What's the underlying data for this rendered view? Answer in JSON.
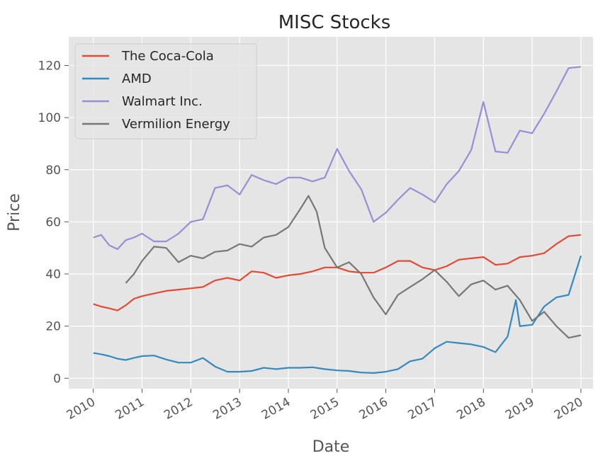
{
  "chart_data": {
    "type": "line",
    "title": "MISC Stocks",
    "xlabel": "Date",
    "ylabel": "Price",
    "x_range": [
      "2009-07-01",
      "2020-04-01"
    ],
    "ylim": [
      -4,
      131
    ],
    "xticks": [
      "2010",
      "2011",
      "2012",
      "2013",
      "2014",
      "2015",
      "2016",
      "2017",
      "2018",
      "2019",
      "2020"
    ],
    "yticks": [
      0,
      20,
      40,
      60,
      80,
      100,
      120
    ],
    "grid": true,
    "legend_position": "top-left",
    "series": [
      {
        "name": "The Coca-Cola",
        "color": "#E24A33",
        "points": [
          [
            "2010-01-01",
            28.5
          ],
          [
            "2010-03-01",
            27.5
          ],
          [
            "2010-05-01",
            26.8
          ],
          [
            "2010-07-01",
            26.0
          ],
          [
            "2010-09-01",
            28.0
          ],
          [
            "2010-11-01",
            30.5
          ],
          [
            "2011-01-01",
            31.5
          ],
          [
            "2011-04-01",
            32.5
          ],
          [
            "2011-07-01",
            33.5
          ],
          [
            "2011-10-01",
            34.0
          ],
          [
            "2012-01-01",
            34.5
          ],
          [
            "2012-04-01",
            35.0
          ],
          [
            "2012-07-01",
            37.5
          ],
          [
            "2012-10-01",
            38.5
          ],
          [
            "2013-01-01",
            37.5
          ],
          [
            "2013-04-01",
            41.0
          ],
          [
            "2013-07-01",
            40.5
          ],
          [
            "2013-10-01",
            38.5
          ],
          [
            "2014-01-01",
            39.5
          ],
          [
            "2014-04-01",
            40.0
          ],
          [
            "2014-07-01",
            41.0
          ],
          [
            "2014-10-01",
            42.5
          ],
          [
            "2015-01-01",
            42.5
          ],
          [
            "2015-04-01",
            41.0
          ],
          [
            "2015-07-01",
            40.5
          ],
          [
            "2015-10-01",
            40.5
          ],
          [
            "2016-01-01",
            42.5
          ],
          [
            "2016-04-01",
            45.0
          ],
          [
            "2016-07-01",
            45.0
          ],
          [
            "2016-10-01",
            42.5
          ],
          [
            "2017-01-01",
            41.5
          ],
          [
            "2017-04-01",
            43.0
          ],
          [
            "2017-07-01",
            45.5
          ],
          [
            "2017-10-01",
            46.0
          ],
          [
            "2018-01-01",
            46.5
          ],
          [
            "2018-04-01",
            43.5
          ],
          [
            "2018-07-01",
            44.0
          ],
          [
            "2018-10-01",
            46.5
          ],
          [
            "2019-01-01",
            47.0
          ],
          [
            "2019-04-01",
            48.0
          ],
          [
            "2019-07-01",
            51.5
          ],
          [
            "2019-10-01",
            54.5
          ],
          [
            "2020-01-01",
            55.0
          ]
        ]
      },
      {
        "name": "AMD",
        "color": "#348ABD",
        "points": [
          [
            "2010-01-01",
            9.7
          ],
          [
            "2010-03-01",
            9.2
          ],
          [
            "2010-05-01",
            8.5
          ],
          [
            "2010-07-01",
            7.5
          ],
          [
            "2010-09-01",
            7.0
          ],
          [
            "2010-11-01",
            7.8
          ],
          [
            "2011-01-01",
            8.5
          ],
          [
            "2011-04-01",
            8.7
          ],
          [
            "2011-07-01",
            7.2
          ],
          [
            "2011-10-01",
            6.0
          ],
          [
            "2012-01-01",
            6.0
          ],
          [
            "2012-04-01",
            7.8
          ],
          [
            "2012-07-01",
            4.5
          ],
          [
            "2012-10-01",
            2.5
          ],
          [
            "2013-01-01",
            2.5
          ],
          [
            "2013-04-01",
            2.8
          ],
          [
            "2013-07-01",
            4.0
          ],
          [
            "2013-10-01",
            3.5
          ],
          [
            "2014-01-01",
            4.0
          ],
          [
            "2014-04-01",
            4.0
          ],
          [
            "2014-07-01",
            4.2
          ],
          [
            "2014-10-01",
            3.5
          ],
          [
            "2015-01-01",
            3.0
          ],
          [
            "2015-04-01",
            2.8
          ],
          [
            "2015-07-01",
            2.2
          ],
          [
            "2015-10-01",
            2.0
          ],
          [
            "2016-01-01",
            2.5
          ],
          [
            "2016-04-01",
            3.5
          ],
          [
            "2016-07-01",
            6.5
          ],
          [
            "2016-10-01",
            7.5
          ],
          [
            "2017-01-01",
            11.5
          ],
          [
            "2017-04-01",
            14.0
          ],
          [
            "2017-07-01",
            13.5
          ],
          [
            "2017-10-01",
            13.0
          ],
          [
            "2018-01-01",
            12.0
          ],
          [
            "2018-04-01",
            10.0
          ],
          [
            "2018-07-01",
            16.0
          ],
          [
            "2018-09-01",
            30.0
          ],
          [
            "2018-10-01",
            20.0
          ],
          [
            "2019-01-01",
            20.5
          ],
          [
            "2019-04-01",
            27.5
          ],
          [
            "2019-07-01",
            31.0
          ],
          [
            "2019-10-01",
            32.0
          ],
          [
            "2020-01-01",
            47.0
          ]
        ]
      },
      {
        "name": "Walmart Inc.",
        "color": "#988ED5",
        "points": [
          [
            "2010-01-01",
            54.0
          ],
          [
            "2010-03-01",
            55.0
          ],
          [
            "2010-05-01",
            51.0
          ],
          [
            "2010-07-01",
            49.5
          ],
          [
            "2010-09-01",
            53.0
          ],
          [
            "2010-11-01",
            54.0
          ],
          [
            "2011-01-01",
            55.5
          ],
          [
            "2011-04-01",
            52.5
          ],
          [
            "2011-07-01",
            52.5
          ],
          [
            "2011-10-01",
            55.5
          ],
          [
            "2012-01-01",
            60.0
          ],
          [
            "2012-04-01",
            61.0
          ],
          [
            "2012-07-01",
            73.0
          ],
          [
            "2012-10-01",
            74.0
          ],
          [
            "2013-01-01",
            70.5
          ],
          [
            "2013-04-01",
            78.0
          ],
          [
            "2013-07-01",
            76.0
          ],
          [
            "2013-10-01",
            74.5
          ],
          [
            "2014-01-01",
            77.0
          ],
          [
            "2014-04-01",
            77.0
          ],
          [
            "2014-07-01",
            75.5
          ],
          [
            "2014-10-01",
            77.0
          ],
          [
            "2015-01-01",
            88.0
          ],
          [
            "2015-04-01",
            79.5
          ],
          [
            "2015-07-01",
            72.5
          ],
          [
            "2015-10-01",
            60.0
          ],
          [
            "2016-01-01",
            63.5
          ],
          [
            "2016-04-01",
            68.5
          ],
          [
            "2016-07-01",
            73.0
          ],
          [
            "2016-10-01",
            70.5
          ],
          [
            "2017-01-01",
            67.5
          ],
          [
            "2017-04-01",
            74.5
          ],
          [
            "2017-07-01",
            79.5
          ],
          [
            "2017-10-01",
            87.5
          ],
          [
            "2018-01-01",
            106.0
          ],
          [
            "2018-04-01",
            87.0
          ],
          [
            "2018-07-01",
            86.5
          ],
          [
            "2018-10-01",
            95.0
          ],
          [
            "2019-01-01",
            94.0
          ],
          [
            "2019-04-01",
            101.5
          ],
          [
            "2019-07-01",
            110.0
          ],
          [
            "2019-10-01",
            119.0
          ],
          [
            "2020-01-01",
            119.5
          ]
        ]
      },
      {
        "name": "Vermilion Energy",
        "color": "#777777",
        "points": [
          [
            "2010-09-01",
            36.5
          ],
          [
            "2010-11-01",
            40.0
          ],
          [
            "2011-01-01",
            45.0
          ],
          [
            "2011-04-01",
            50.5
          ],
          [
            "2011-07-01",
            50.0
          ],
          [
            "2011-10-01",
            44.5
          ],
          [
            "2012-01-01",
            47.0
          ],
          [
            "2012-04-01",
            46.0
          ],
          [
            "2012-07-01",
            48.5
          ],
          [
            "2012-10-01",
            49.0
          ],
          [
            "2013-01-01",
            51.5
          ],
          [
            "2013-04-01",
            50.5
          ],
          [
            "2013-07-01",
            54.0
          ],
          [
            "2013-10-01",
            55.0
          ],
          [
            "2014-01-01",
            58.0
          ],
          [
            "2014-04-01",
            65.0
          ],
          [
            "2014-06-01",
            70.0
          ],
          [
            "2014-08-01",
            64.0
          ],
          [
            "2014-10-01",
            50.0
          ],
          [
            "2015-01-01",
            42.5
          ],
          [
            "2015-04-01",
            44.5
          ],
          [
            "2015-07-01",
            40.0
          ],
          [
            "2015-10-01",
            31.0
          ],
          [
            "2016-01-01",
            24.5
          ],
          [
            "2016-04-01",
            32.0
          ],
          [
            "2016-07-01",
            35.0
          ],
          [
            "2016-10-01",
            38.0
          ],
          [
            "2017-01-01",
            41.5
          ],
          [
            "2017-04-01",
            37.0
          ],
          [
            "2017-07-01",
            31.5
          ],
          [
            "2017-10-01",
            36.0
          ],
          [
            "2018-01-01",
            37.5
          ],
          [
            "2018-04-01",
            34.0
          ],
          [
            "2018-07-01",
            35.5
          ],
          [
            "2018-10-01",
            30.0
          ],
          [
            "2019-01-01",
            22.0
          ],
          [
            "2019-04-01",
            25.5
          ],
          [
            "2019-07-01",
            20.0
          ],
          [
            "2019-10-01",
            15.5
          ],
          [
            "2020-01-01",
            16.5
          ]
        ]
      }
    ]
  }
}
